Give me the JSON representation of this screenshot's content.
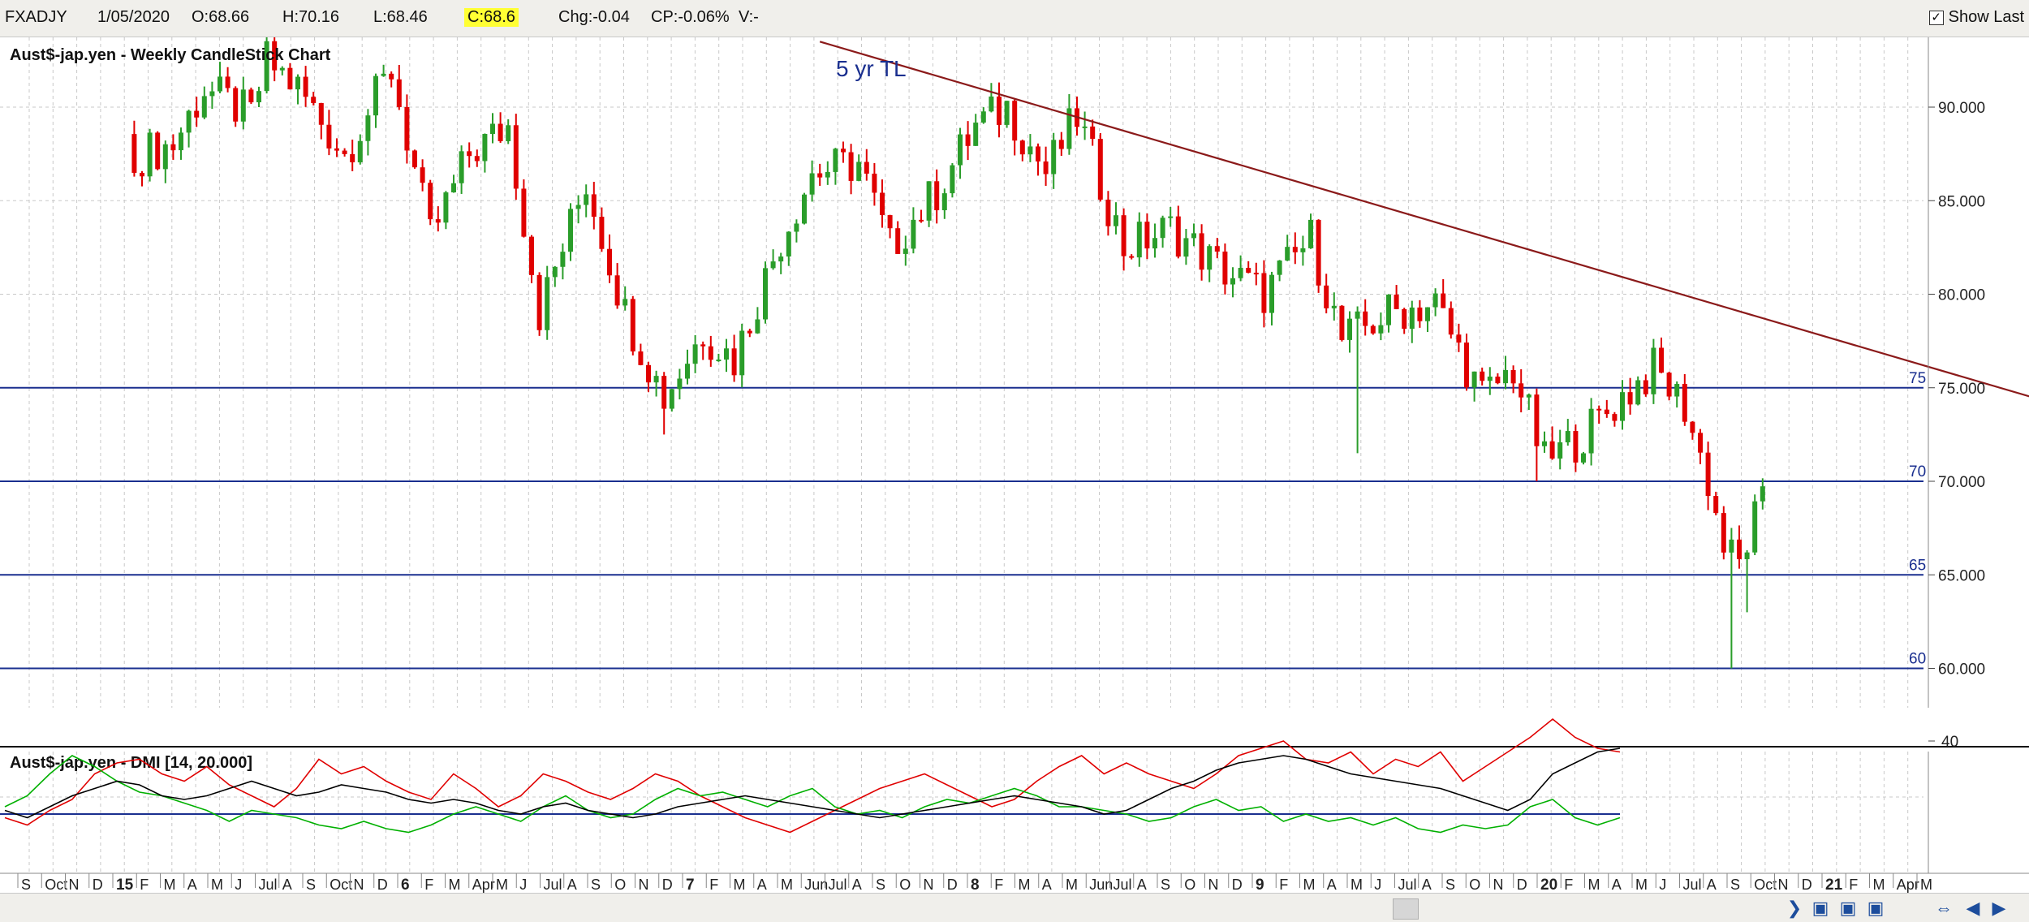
{
  "header": {
    "symbol": "FXADJY",
    "date": "1/05/2020",
    "open": "O:68.66",
    "high": "H:70.16",
    "low": "L:68.46",
    "close": "C:68.6",
    "change": "Chg:-0.04",
    "change_pct": "CP:-0.06%",
    "volume": "V:-",
    "show_last_label": "Show Last",
    "show_last_checked": true
  },
  "chart_data": [
    {
      "type": "candlestick",
      "title": "Aust$-jap.yen - Weekly CandleStick Chart",
      "ylim": [
        55.5,
        93.5
      ],
      "y_ticks": [
        "60.000",
        "65.000",
        "70.000",
        "75.000",
        "80.000",
        "85.000",
        "90.000"
      ],
      "x_labels": [
        "S",
        "Oct",
        "N",
        "D",
        "15",
        "F",
        "M",
        "A",
        "M",
        "J",
        "Jul",
        "A",
        "S",
        "Oct",
        "N",
        "D",
        "6",
        "F",
        "M",
        "Apr",
        "M",
        "J",
        "Jul",
        "A",
        "S",
        "O",
        "N",
        "D",
        "7",
        "F",
        "M",
        "A",
        "M",
        "Jun",
        "Jul",
        "A",
        "S",
        "O",
        "N",
        "D",
        "8",
        "F",
        "M",
        "A",
        "M",
        "Jun",
        "Jul",
        "A",
        "S",
        "O",
        "N",
        "D",
        "9",
        "F",
        "M",
        "A",
        "M",
        "J",
        "Jul",
        "A",
        "S",
        "O",
        "N",
        "D",
        "20",
        "F",
        "M",
        "A",
        "M",
        "J",
        "Jul",
        "A",
        "S",
        "Oct",
        "N",
        "D",
        "21",
        "F",
        "M",
        "Apr",
        "M"
      ],
      "x_label_years": [
        "15",
        "6",
        "7",
        "8",
        "9",
        "20",
        "21"
      ],
      "approx_weekly_close_path": [
        {
          "week": 0,
          "close": 87.5
        },
        {
          "week": 4,
          "close": 88.0
        },
        {
          "week": 8,
          "close": 91.0
        },
        {
          "week": 14,
          "close": 89.5
        },
        {
          "week": 16,
          "close": 92.5
        },
        {
          "week": 20,
          "close": 91.0
        },
        {
          "week": 26,
          "close": 87.5
        },
        {
          "week": 32,
          "close": 92.0
        },
        {
          "week": 37,
          "close": 83.0
        },
        {
          "week": 42,
          "close": 87.5
        },
        {
          "week": 47,
          "close": 89.0
        },
        {
          "week": 51,
          "close": 79.0
        },
        {
          "week": 57,
          "close": 86.0
        },
        {
          "week": 62,
          "close": 79.0
        },
        {
          "week": 67,
          "close": 74.5
        },
        {
          "week": 72,
          "close": 78.0
        },
        {
          "week": 76,
          "close": 76.5
        },
        {
          "week": 82,
          "close": 83.0
        },
        {
          "week": 86,
          "close": 86.5
        },
        {
          "week": 92,
          "close": 87.0
        },
        {
          "week": 96,
          "close": 82.5
        },
        {
          "week": 102,
          "close": 85.5
        },
        {
          "week": 107,
          "close": 89.0
        },
        {
          "week": 111,
          "close": 90.0
        },
        {
          "week": 116,
          "close": 86.5
        },
        {
          "week": 120,
          "close": 89.5
        },
        {
          "week": 126,
          "close": 82.5
        },
        {
          "week": 132,
          "close": 83.5
        },
        {
          "week": 138,
          "close": 81.5
        },
        {
          "week": 144,
          "close": 80.0
        },
        {
          "week": 150,
          "close": 83.0
        },
        {
          "week": 154,
          "close": 77.5
        },
        {
          "week": 160,
          "close": 79.0
        },
        {
          "week": 166,
          "close": 79.5
        },
        {
          "week": 172,
          "close": 74.5
        },
        {
          "week": 176,
          "close": 76.0
        },
        {
          "week": 180,
          "close": 71.0
        },
        {
          "week": 185,
          "close": 72.5
        },
        {
          "week": 190,
          "close": 74.5
        },
        {
          "week": 194,
          "close": 76.0
        },
        {
          "week": 198,
          "close": 74.0
        },
        {
          "week": 201,
          "close": 70.0
        },
        {
          "week": 203,
          "close": 66.5
        },
        {
          "week": 205,
          "close": 65.5
        },
        {
          "week": 207,
          "close": 68.0
        },
        {
          "week": 208,
          "close": 68.6
        }
      ],
      "extreme_wicks": [
        {
          "week": 67,
          "low": 72.5
        },
        {
          "week": 156,
          "low": 71.5
        },
        {
          "week": 179,
          "low": 70.0
        },
        {
          "week": 204,
          "low": 60.0
        },
        {
          "week": 206,
          "low": 63.0
        },
        {
          "week": 208,
          "high": 70.16
        }
      ],
      "horizontal_lines": [
        {
          "label": "75",
          "value": 75
        },
        {
          "label": "70",
          "value": 70
        },
        {
          "label": "65",
          "value": 65
        },
        {
          "label": "60",
          "value": 60
        }
      ],
      "trendline": {
        "label": "5 yr TL",
        "start": {
          "week": 87,
          "value": 93.5
        },
        "end": {
          "week": 245,
          "value": 74.2
        }
      },
      "colors": {
        "up": "#2a9d2a",
        "down": "#e00000",
        "hlines": "#1a2f8f",
        "trendline": "#8b1a1a",
        "grid": "#c8c8c8"
      }
    },
    {
      "type": "line",
      "title": "Aust$-jap.yen - DMI [14, 20.000]",
      "y_ticks": [
        "40"
      ],
      "reference_line": 20,
      "series": [
        {
          "color": "#e00000",
          "values": [
            19,
            17,
            21,
            24,
            31,
            34,
            35,
            31,
            29,
            33,
            28,
            25,
            22,
            27,
            35,
            31,
            33,
            29,
            26,
            24,
            31,
            27,
            22,
            25,
            31,
            29,
            26,
            24,
            27,
            31,
            29,
            25,
            22,
            19,
            17,
            15,
            18,
            21,
            24,
            27,
            29,
            31,
            28,
            25,
            22,
            24,
            29,
            33,
            36,
            31,
            34,
            31,
            29,
            27,
            31,
            36,
            38,
            40,
            35,
            34,
            37,
            31,
            35,
            33,
            37,
            29,
            33,
            37,
            41,
            46,
            41,
            38,
            37
          ]
        },
        {
          "color": "#00b000",
          "values": [
            22,
            25,
            31,
            36,
            33,
            29,
            26,
            25,
            23,
            21,
            18,
            21,
            20,
            19,
            17,
            16,
            18,
            16,
            15,
            17,
            20,
            22,
            20,
            18,
            22,
            25,
            21,
            19,
            20,
            24,
            27,
            25,
            26,
            24,
            22,
            25,
            27,
            22,
            20,
            21,
            19,
            22,
            24,
            23,
            25,
            27,
            25,
            22,
            22,
            21,
            20,
            18,
            19,
            22,
            24,
            21,
            22,
            18,
            20,
            18,
            19,
            17,
            19,
            16,
            15,
            17,
            16,
            17,
            22,
            24,
            19,
            17,
            19
          ]
        },
        {
          "color": "#000000",
          "values": [
            21,
            19,
            22,
            25,
            27,
            29,
            28,
            25,
            24,
            25,
            27,
            29,
            27,
            25,
            26,
            28,
            27,
            26,
            24,
            23,
            24,
            23,
            21,
            20,
            22,
            23,
            21,
            20,
            19,
            20,
            22,
            23,
            24,
            25,
            24,
            23,
            22,
            21,
            20,
            19,
            20,
            21,
            22,
            23,
            24,
            25,
            24,
            23,
            22,
            20,
            21,
            24,
            27,
            29,
            32,
            34,
            35,
            36,
            35,
            33,
            31,
            30,
            29,
            28,
            27,
            25,
            23,
            21,
            24,
            31,
            34,
            37,
            38
          ]
        }
      ]
    }
  ]
}
